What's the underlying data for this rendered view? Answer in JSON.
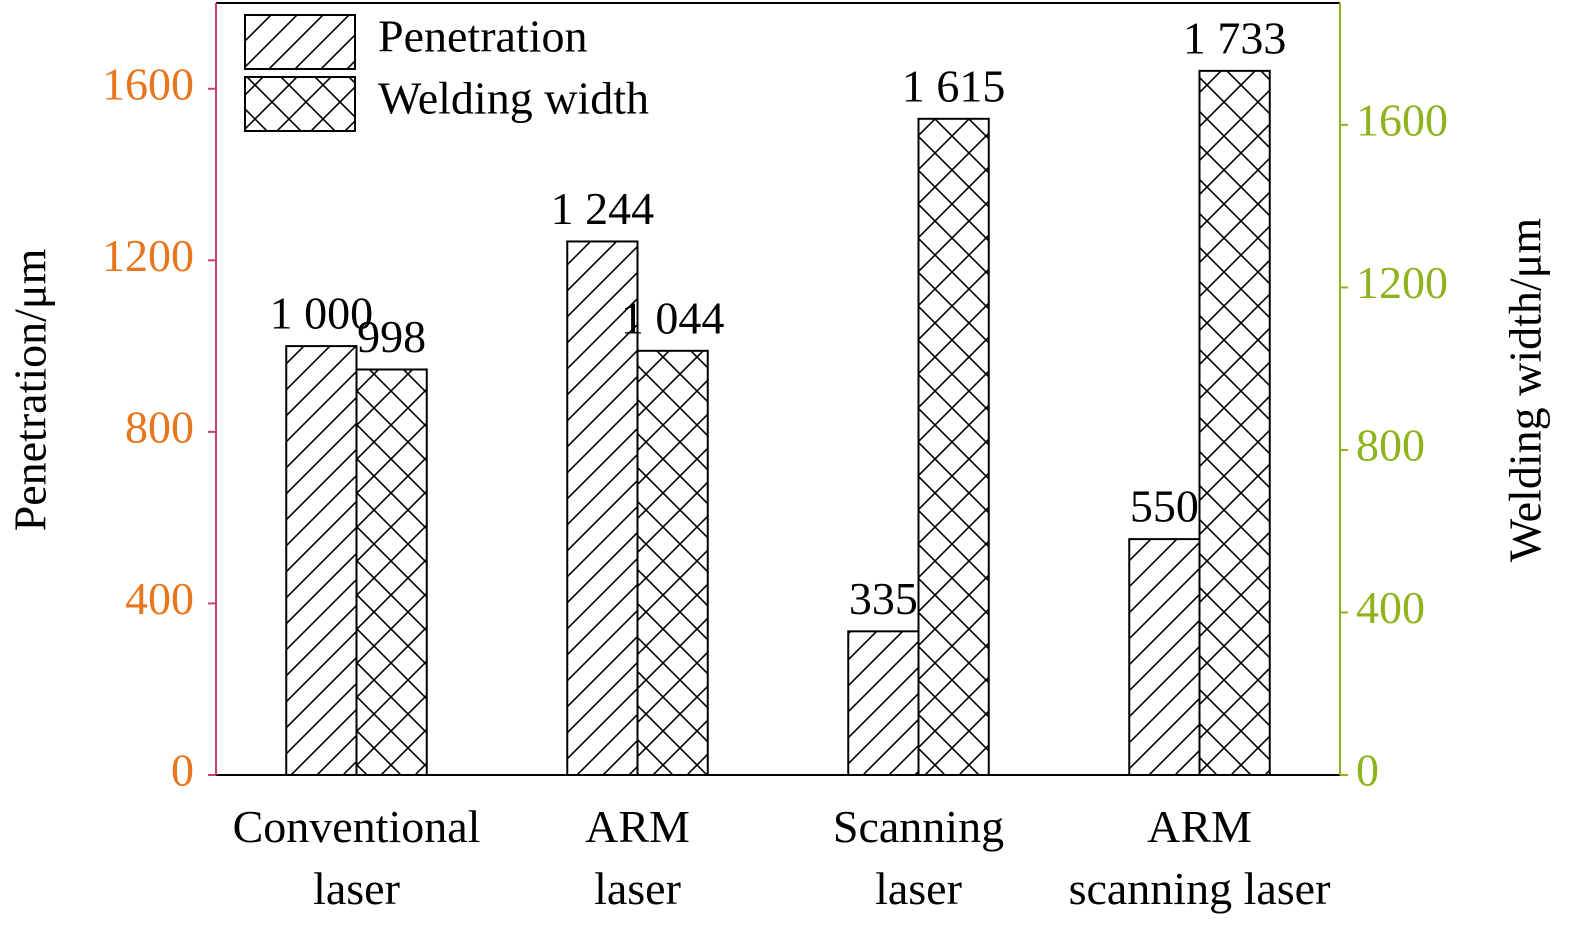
{
  "chart_data": {
    "type": "bar",
    "categories": [
      "Conventional\nlaser",
      "ARM\nlaser",
      "Scanning\nlaser",
      "ARM\nscanning laser"
    ],
    "series": [
      {
        "name": "Penetration",
        "color": "#000000",
        "hatch": "/",
        "values": [
          1000,
          1244,
          335,
          550
        ],
        "value_labels": [
          "1 000",
          "1 244",
          "335",
          "550"
        ]
      },
      {
        "name": "Welding width",
        "color": "#000000",
        "hatch": "x",
        "axis": "y2",
        "values": [
          998,
          1044,
          1615,
          1733
        ],
        "value_labels": [
          "998",
          "1 044",
          "1 615",
          "1 733"
        ]
      }
    ],
    "ylabel": "Penetration/μm",
    "y2label": "Welding width/μm",
    "ylim": [
      0,
      1800
    ],
    "yticks": [
      0,
      400,
      800,
      1200,
      1600
    ],
    "y2lim": [
      0,
      1900
    ],
    "y2ticks": [
      0,
      400,
      800,
      1200,
      1600
    ],
    "y_axis_color": "#e8761e",
    "y2_axis_color": "#8fb31d",
    "legend": "upper left",
    "grid": false
  }
}
